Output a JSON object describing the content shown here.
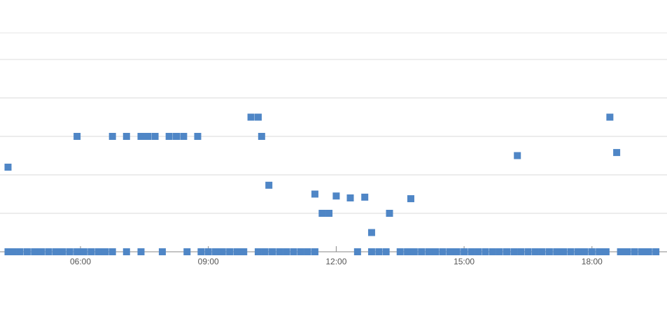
{
  "chart_data": {
    "type": "scatter",
    "title": "",
    "xlabel": "",
    "ylabel": "",
    "grid": true,
    "legend": "none",
    "marker": "square",
    "color": "#4f86c6",
    "xlim": [
      4.3,
      19.5
    ],
    "ylim": [
      0,
      5
    ],
    "x_ticks": [
      {
        "label": "06:00",
        "x": 6
      },
      {
        "label": "09:00",
        "x": 9
      },
      {
        "label": "12:00",
        "x": 12
      },
      {
        "label": "15:00",
        "x": 15
      },
      {
        "label": "18:00",
        "x": 18
      }
    ],
    "series": [
      {
        "points": [
          {
            "x": 4.3,
            "y": 2.2
          },
          {
            "x": 5.92,
            "y": 3.0
          },
          {
            "x": 6.75,
            "y": 3.0
          },
          {
            "x": 7.08,
            "y": 3.0
          },
          {
            "x": 7.42,
            "y": 3.0
          },
          {
            "x": 7.58,
            "y": 3.0
          },
          {
            "x": 7.75,
            "y": 3.0
          },
          {
            "x": 8.08,
            "y": 3.0
          },
          {
            "x": 8.25,
            "y": 3.0
          },
          {
            "x": 8.42,
            "y": 3.0
          },
          {
            "x": 8.75,
            "y": 3.0
          },
          {
            "x": 10.0,
            "y": 3.5
          },
          {
            "x": 10.17,
            "y": 3.5
          },
          {
            "x": 10.25,
            "y": 3.0
          },
          {
            "x": 10.42,
            "y": 1.73
          },
          {
            "x": 11.5,
            "y": 1.5
          },
          {
            "x": 11.67,
            "y": 1.0
          },
          {
            "x": 11.83,
            "y": 1.0
          },
          {
            "x": 12.0,
            "y": 1.45
          },
          {
            "x": 12.33,
            "y": 1.4
          },
          {
            "x": 12.67,
            "y": 1.42
          },
          {
            "x": 12.83,
            "y": 0.5
          },
          {
            "x": 13.25,
            "y": 1.0
          },
          {
            "x": 13.75,
            "y": 1.38
          },
          {
            "x": 16.25,
            "y": 2.5
          },
          {
            "x": 18.42,
            "y": 3.5
          },
          {
            "x": 18.58,
            "y": 2.58
          },
          {
            "x": 4.3,
            "y": 0
          },
          {
            "x": 4.42,
            "y": 0
          },
          {
            "x": 4.58,
            "y": 0
          },
          {
            "x": 4.75,
            "y": 0
          },
          {
            "x": 4.92,
            "y": 0
          },
          {
            "x": 5.08,
            "y": 0
          },
          {
            "x": 5.25,
            "y": 0
          },
          {
            "x": 5.42,
            "y": 0
          },
          {
            "x": 5.58,
            "y": 0
          },
          {
            "x": 5.75,
            "y": 0
          },
          {
            "x": 5.92,
            "y": 0
          },
          {
            "x": 6.08,
            "y": 0
          },
          {
            "x": 6.25,
            "y": 0
          },
          {
            "x": 6.42,
            "y": 0
          },
          {
            "x": 6.58,
            "y": 0
          },
          {
            "x": 6.75,
            "y": 0
          },
          {
            "x": 7.08,
            "y": 0
          },
          {
            "x": 7.42,
            "y": 0
          },
          {
            "x": 7.92,
            "y": 0
          },
          {
            "x": 8.5,
            "y": 0
          },
          {
            "x": 8.83,
            "y": 0
          },
          {
            "x": 9.0,
            "y": 0
          },
          {
            "x": 9.17,
            "y": 0
          },
          {
            "x": 9.33,
            "y": 0
          },
          {
            "x": 9.5,
            "y": 0
          },
          {
            "x": 9.67,
            "y": 0
          },
          {
            "x": 9.83,
            "y": 0
          },
          {
            "x": 10.17,
            "y": 0
          },
          {
            "x": 10.33,
            "y": 0
          },
          {
            "x": 10.5,
            "y": 0
          },
          {
            "x": 10.67,
            "y": 0
          },
          {
            "x": 10.83,
            "y": 0
          },
          {
            "x": 11.0,
            "y": 0
          },
          {
            "x": 11.17,
            "y": 0
          },
          {
            "x": 11.33,
            "y": 0
          },
          {
            "x": 11.5,
            "y": 0
          },
          {
            "x": 12.5,
            "y": 0
          },
          {
            "x": 12.83,
            "y": 0
          },
          {
            "x": 13.0,
            "y": 0
          },
          {
            "x": 13.17,
            "y": 0
          },
          {
            "x": 13.5,
            "y": 0
          },
          {
            "x": 13.67,
            "y": 0
          },
          {
            "x": 13.83,
            "y": 0
          },
          {
            "x": 14.0,
            "y": 0
          },
          {
            "x": 14.17,
            "y": 0
          },
          {
            "x": 14.33,
            "y": 0
          },
          {
            "x": 14.5,
            "y": 0
          },
          {
            "x": 14.67,
            "y": 0
          },
          {
            "x": 14.83,
            "y": 0
          },
          {
            "x": 15.0,
            "y": 0
          },
          {
            "x": 15.17,
            "y": 0
          },
          {
            "x": 15.33,
            "y": 0
          },
          {
            "x": 15.5,
            "y": 0
          },
          {
            "x": 15.67,
            "y": 0
          },
          {
            "x": 15.83,
            "y": 0
          },
          {
            "x": 16.0,
            "y": 0
          },
          {
            "x": 16.17,
            "y": 0
          },
          {
            "x": 16.33,
            "y": 0
          },
          {
            "x": 16.5,
            "y": 0
          },
          {
            "x": 16.67,
            "y": 0
          },
          {
            "x": 16.83,
            "y": 0
          },
          {
            "x": 17.0,
            "y": 0
          },
          {
            "x": 17.17,
            "y": 0
          },
          {
            "x": 17.33,
            "y": 0
          },
          {
            "x": 17.5,
            "y": 0
          },
          {
            "x": 17.67,
            "y": 0
          },
          {
            "x": 17.83,
            "y": 0
          },
          {
            "x": 18.0,
            "y": 0
          },
          {
            "x": 18.17,
            "y": 0
          },
          {
            "x": 18.33,
            "y": 0
          },
          {
            "x": 18.67,
            "y": 0
          },
          {
            "x": 18.83,
            "y": 0
          },
          {
            "x": 19.0,
            "y": 0
          },
          {
            "x": 19.17,
            "y": 0
          },
          {
            "x": 19.33,
            "y": 0
          },
          {
            "x": 19.5,
            "y": 0
          }
        ]
      }
    ]
  }
}
